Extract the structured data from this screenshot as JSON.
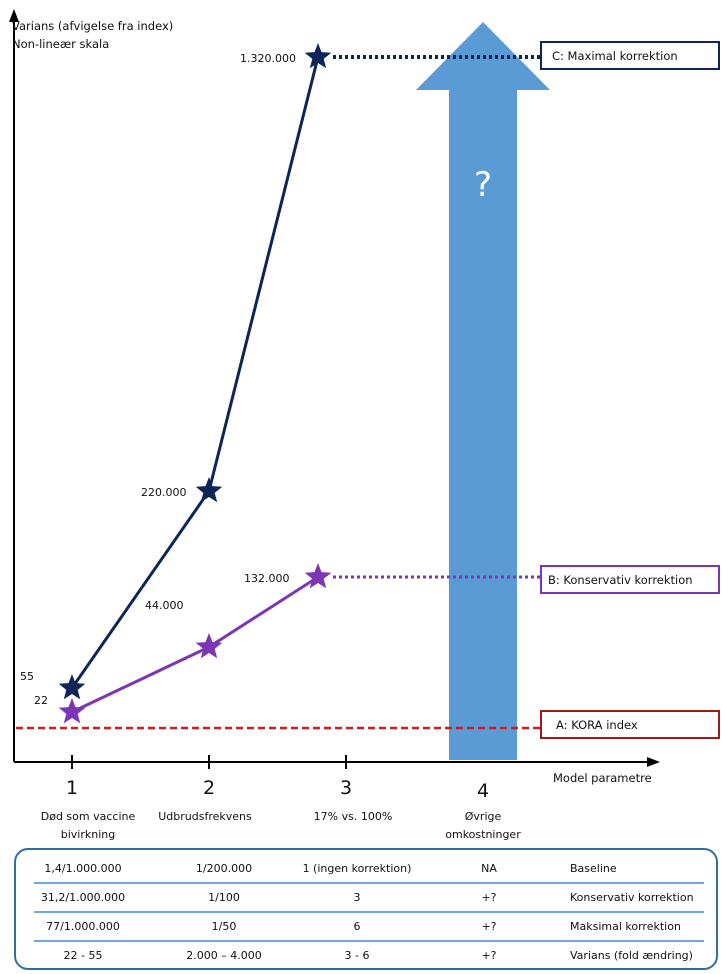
{
  "chart_data": {
    "type": "line",
    "y_axis": {
      "label_line1": "Varians (afvigelse fra index)",
      "label_line2": "Non-lineær skala"
    },
    "x_axis": {
      "label": "Model parametre"
    },
    "categories": [
      {
        "number": "1",
        "label_line1": "Død som vaccine",
        "label_line2": "bivirkning"
      },
      {
        "number": "2",
        "label_line1": "Udbrudsfrekvens",
        "label_line2": ""
      },
      {
        "number": "3",
        "label_line1": "17% vs. 100%",
        "label_line2": ""
      },
      {
        "number": "4",
        "label_line1": "Øvrige",
        "label_line2": "omkostninger"
      }
    ],
    "series": [
      {
        "color": "#0d2557",
        "points": [
          {
            "x": 1,
            "y": 55,
            "label": "55"
          },
          {
            "x": 2,
            "y": 220000,
            "label": "220.000"
          },
          {
            "x": 3,
            "y": 1320000,
            "label": "1.320.000"
          }
        ]
      },
      {
        "color": "#7b35b5",
        "points": [
          {
            "x": 1,
            "y": 22,
            "label": "22"
          },
          {
            "x": 2,
            "y": 44000,
            "label": "44.000"
          },
          {
            "x": 3,
            "y": 132000,
            "label": "132.000"
          }
        ]
      }
    ],
    "reference_lines": [
      {
        "label": "C: Maximal korrektion",
        "color": "#0d2557",
        "style": "dotted"
      },
      {
        "label": "B: Konservativ korrektion",
        "color": "#7b35b5",
        "style": "dotted"
      },
      {
        "label": "A: KORA index",
        "color": "#c00000",
        "style": "dashed"
      }
    ],
    "arrow": {
      "category": "4",
      "label": "?",
      "color": "#5b9bd5"
    }
  },
  "table": {
    "rows": [
      [
        "1,4/1.000.000",
        "1/200.000",
        "1 (ingen korrektion)",
        "NA",
        "Baseline"
      ],
      [
        "31,2/1.000.000",
        "1/100",
        "3",
        "+?",
        "Konservativ korrektion"
      ],
      [
        "77/1.000.000",
        "1/50",
        "6",
        "+?",
        "Maksimal korrektion"
      ],
      [
        "22 - 55",
        "2.000 – 4.000",
        "3 - 6",
        "+?",
        "Varians (fold ændring)"
      ]
    ]
  }
}
